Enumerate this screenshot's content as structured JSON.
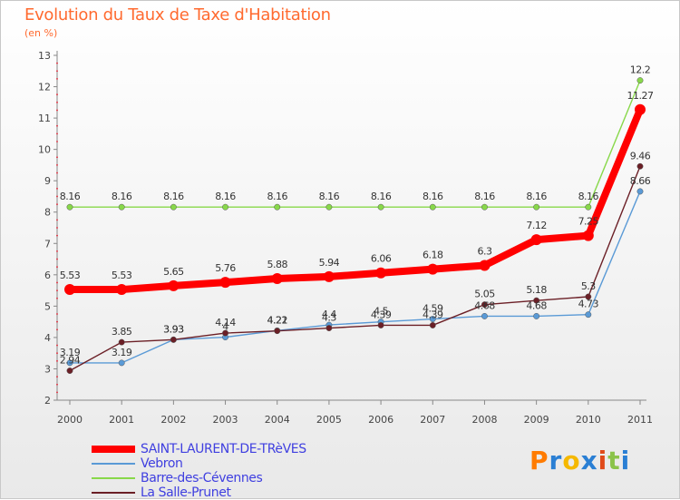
{
  "chart_data": {
    "type": "line",
    "title": "Evolution du Taux de Taxe d'Habitation",
    "ylabel": "(en %)",
    "xlabel": "",
    "x": [
      "2000",
      "2001",
      "2002",
      "2003",
      "2004",
      "2005",
      "2006",
      "2007",
      "2008",
      "2009",
      "2010",
      "2011"
    ],
    "ylim": [
      2,
      13
    ],
    "yticks": [
      "2",
      "3",
      "4",
      "5",
      "6",
      "7",
      "8",
      "9",
      "10",
      "11",
      "12",
      "13"
    ],
    "grid": false,
    "legend_position": "bottom-left",
    "series": [
      {
        "name": "SAINT-LAURENT-DE-TRèVES",
        "color": "#ff0000",
        "values": [
          5.53,
          5.53,
          5.65,
          5.76,
          5.88,
          5.94,
          6.06,
          6.18,
          6.3,
          7.12,
          7.25,
          11.27
        ],
        "labels": [
          "5.53",
          "5.53",
          "5.65",
          "5.76",
          "5.88",
          "5.94",
          "6.06",
          "6.18",
          "6.3",
          "7.12",
          "7.25",
          "11.27"
        ]
      },
      {
        "name": "Vebron",
        "color": "#5a9ad6",
        "values": [
          3.19,
          3.19,
          3.93,
          4.01,
          4.22,
          4.4,
          4.5,
          4.59,
          4.68,
          4.68,
          4.73,
          8.66
        ],
        "labels": [
          "3.19",
          "3.19",
          "3.93",
          "4",
          "4.22",
          "4.4",
          "4.5",
          "4.59",
          "4.68",
          "4.68",
          "4.73",
          "8.66"
        ]
      },
      {
        "name": "Barre-des-Cévennes",
        "color": "#88d84a",
        "values": [
          8.16,
          8.16,
          8.16,
          8.16,
          8.16,
          8.16,
          8.16,
          8.16,
          8.16,
          8.16,
          8.16,
          12.2
        ],
        "labels": [
          "8.16",
          "8.16",
          "8.16",
          "8.16",
          "8.16",
          "8.16",
          "8.16",
          "8.16",
          "8.16",
          "8.16",
          "8.16",
          "12.2"
        ]
      },
      {
        "name": "La Salle-Prunet",
        "color": "#6b1f26",
        "values": [
          2.94,
          3.85,
          3.93,
          4.14,
          4.21,
          4.3,
          4.39,
          4.39,
          5.05,
          5.18,
          5.3,
          9.46
        ],
        "labels": [
          "2.94",
          "3.85",
          "3.93",
          "4.14",
          "4.21",
          "4.3",
          "4.39",
          "4.39",
          "5.05",
          "5.18",
          "5.3",
          "9.46"
        ]
      }
    ]
  },
  "brand": "Proxiti",
  "colors": {
    "title": "#ff6a2f",
    "axis": "#888888",
    "legend_text": "#3f3fe0",
    "brand_letters": [
      "#ff7b00",
      "#2a7fd4",
      "#f5b800",
      "#2a7fd4",
      "#e04a1a",
      "#8bc34a",
      "#2a7fd4"
    ]
  }
}
